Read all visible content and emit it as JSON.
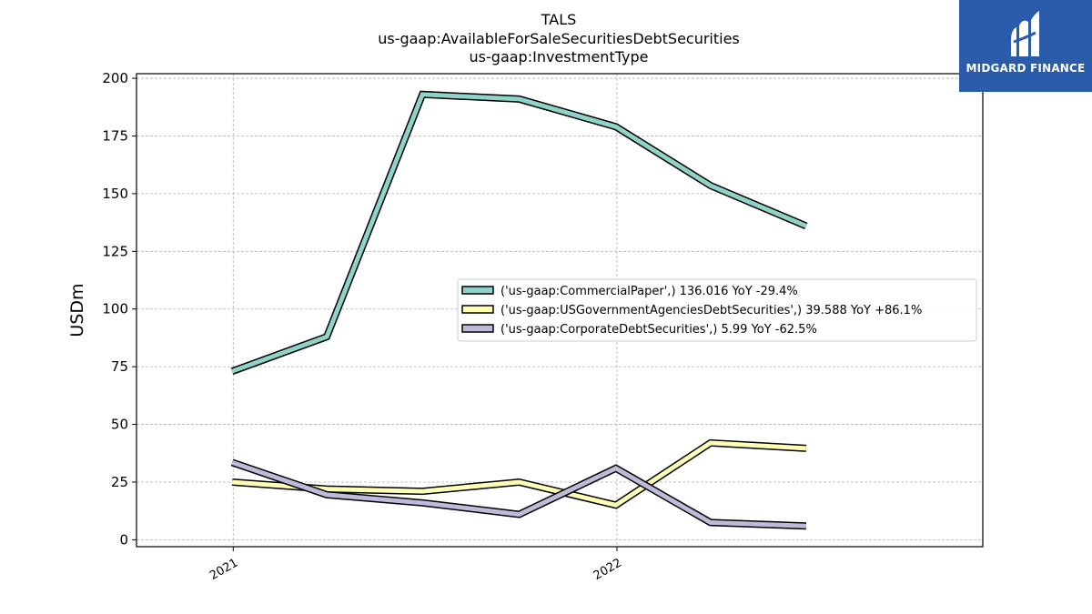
{
  "logo": {
    "text": "MIDGARD FINANCE",
    "icon": "midgard-logo-icon",
    "background": "#2a5cab"
  },
  "chart_data": {
    "type": "line",
    "title_lines": [
      "TALS",
      "us-gaap:AvailableForSaleSecuritiesDebtSecurities",
      "us-gaap:InvestmentType"
    ],
    "xlabel": "",
    "ylabel": "USDm",
    "ylim": [
      -3,
      202
    ],
    "xlim": [
      "2020-10-01",
      "2022-12-15"
    ],
    "yticks": [
      0,
      25,
      50,
      75,
      100,
      125,
      150,
      175,
      200
    ],
    "xticks": [
      {
        "label": "2021",
        "date": "2021-01-01"
      },
      {
        "label": "2022",
        "date": "2022-01-01"
      }
    ],
    "grid": true,
    "legend_position": "center-right",
    "x": [
      "2020-12-31",
      "2021-03-31",
      "2021-06-30",
      "2021-09-30",
      "2021-12-31",
      "2022-03-31",
      "2022-06-30"
    ],
    "series": [
      {
        "name": "('us-gaap:CommercialPaper',) 136.016 YoY -29.4%",
        "color": "#8dd3c7",
        "values": [
          73,
          88,
          193,
          191,
          179,
          153.5,
          136
        ]
      },
      {
        "name": "('us-gaap:USGovernmentAgenciesDebtSecurities',) 39.588 YoY +86.1%",
        "color": "#ffffb3",
        "values": [
          25,
          22,
          21,
          25,
          15,
          42,
          39.6
        ]
      },
      {
        "name": "('us-gaap:CorporateDebtSecurities',) 5.99 YoY -62.5%",
        "color": "#bebada",
        "values": [
          33.5,
          19.5,
          16,
          11,
          31,
          7.5,
          6
        ]
      }
    ]
  }
}
